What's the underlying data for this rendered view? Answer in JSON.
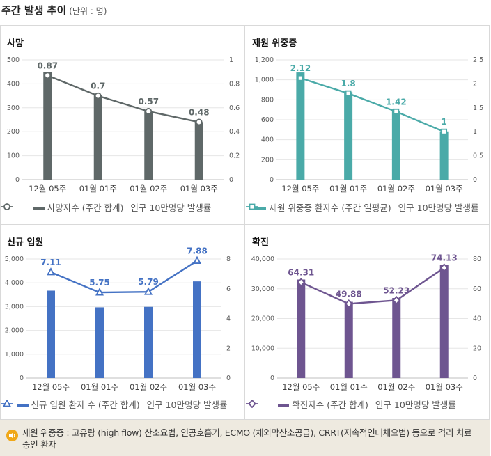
{
  "page": {
    "title": "주간 발생 추이",
    "unit": "(단위 : 명)"
  },
  "colors": {
    "death": "#5f6868",
    "severe": "#4aaaa8",
    "admission": "#4472c4",
    "confirmed": "#6e5590"
  },
  "chart_data": [
    {
      "type": "bar+line",
      "title": "사망",
      "categories": [
        "12월 05주",
        "01월 01주",
        "01월 02주",
        "01월 03주"
      ],
      "series": [
        {
          "name": "사망자수 (주간 합계)",
          "kind": "bar",
          "axis": "left",
          "values": [
            450,
            353,
            287,
            240
          ]
        },
        {
          "name": "인구 10만명당 발생률",
          "kind": "line",
          "axis": "right",
          "marker": "circle",
          "values": [
            0.87,
            0.7,
            0.57,
            0.48
          ],
          "labels": [
            "0.87",
            "0.7",
            "0.57",
            "0.48"
          ]
        }
      ],
      "y_left": {
        "range": [
          0,
          500
        ],
        "ticks": [
          "0",
          "100",
          "200",
          "300",
          "400",
          "500"
        ]
      },
      "y_right": {
        "range": [
          0,
          1
        ],
        "ticks": [
          "0",
          "0.2",
          "0.4",
          "0.6",
          "0.8",
          "1"
        ]
      }
    },
    {
      "type": "bar+line",
      "title": "재원 위중증",
      "categories": [
        "12월 05주",
        "01월 01주",
        "01월 02주",
        "01월 03주"
      ],
      "series": [
        {
          "name": "재원 위중증 환자수 (주간 일평균)",
          "kind": "bar",
          "axis": "left",
          "values": [
            1074,
            877,
            688,
            483
          ]
        },
        {
          "name": "인구 10만명당 발생률",
          "kind": "line",
          "axis": "right",
          "marker": "square",
          "values": [
            2.12,
            1.8,
            1.42,
            1
          ],
          "labels": [
            "2.12",
            "1.8",
            "1.42",
            "1"
          ]
        }
      ],
      "y_left": {
        "range": [
          0,
          1200
        ],
        "ticks": [
          "0",
          "200",
          "400",
          "600",
          "800",
          "1,000",
          "1,200"
        ]
      },
      "y_right": {
        "range": [
          0,
          2.5
        ],
        "ticks": [
          "0",
          "0.5",
          "1",
          "1.5",
          "2",
          "2.5"
        ]
      }
    },
    {
      "type": "bar+line",
      "title": "신규 입원",
      "categories": [
        "12월 05주",
        "01월 01주",
        "01월 02주",
        "01월 03주"
      ],
      "series": [
        {
          "name": "신규 입원 환자 수 (주간 합계)",
          "kind": "bar",
          "axis": "left",
          "values": [
            3670,
            2970,
            2990,
            4060
          ]
        },
        {
          "name": "인구 10만명당 발생률",
          "kind": "line",
          "axis": "right",
          "marker": "triangle",
          "values": [
            7.11,
            5.75,
            5.79,
            7.88
          ],
          "labels": [
            "7.11",
            "5.75",
            "5.79",
            "7.88"
          ]
        }
      ],
      "y_left": {
        "range": [
          0,
          5000
        ],
        "ticks": [
          "0",
          "1,000",
          "2,000",
          "3,000",
          "4,000",
          "5,000"
        ]
      },
      "y_right": {
        "range": [
          0,
          8
        ],
        "ticks": [
          "0",
          "2",
          "4",
          "6",
          "8"
        ]
      }
    },
    {
      "type": "bar+line",
      "title": "확진",
      "categories": [
        "12월 05주",
        "01월 01주",
        "01월 02주",
        "01월 03주"
      ],
      "series": [
        {
          "name": "확진자수 (주간 합계)",
          "kind": "bar",
          "axis": "left",
          "values": [
            33100,
            25600,
            26900,
            38000
          ]
        },
        {
          "name": "인구 10만명당 발생률",
          "kind": "line",
          "axis": "right",
          "marker": "diamond",
          "values": [
            64.31,
            49.88,
            52.23,
            74.13
          ],
          "labels": [
            "64.31",
            "49.88",
            "52.23",
            "74.13"
          ]
        }
      ],
      "y_left": {
        "range": [
          0,
          40000
        ],
        "ticks": [
          "0",
          "10,000",
          "20,000",
          "30,000",
          "40,000"
        ]
      },
      "y_right": {
        "range": [
          0,
          80
        ],
        "ticks": [
          "0",
          "20",
          "40",
          "60",
          "80"
        ]
      }
    }
  ],
  "footnote": {
    "text": "재원 위중증 : 고유량 (high flow) 산소요법, 인공호흡기, ECMO (체외막산소공급), CRRT(지속적인대체요법) 등으로 격리 치료 중인 환자",
    "icon": "speaker-icon"
  }
}
